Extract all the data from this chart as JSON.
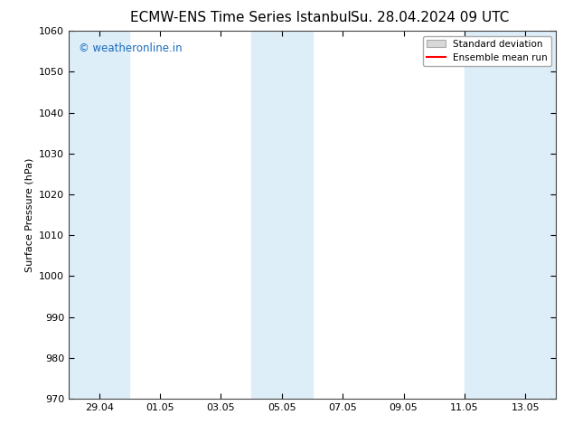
{
  "title_left": "ECMW-ENS Time Series Istanbul",
  "title_right": "Su. 28.04.2024 09 UTC",
  "ylabel": "Surface Pressure (hPa)",
  "ylim": [
    970,
    1060
  ],
  "yticks": [
    970,
    980,
    990,
    1000,
    1010,
    1020,
    1030,
    1040,
    1050,
    1060
  ],
  "xtick_labels": [
    "29.04",
    "01.05",
    "03.05",
    "05.05",
    "07.05",
    "09.05",
    "11.05",
    "13.05"
  ],
  "xtick_dates": [
    "2024-04-29",
    "2024-05-01",
    "2024-05-03",
    "2024-05-05",
    "2024-05-07",
    "2024-05-09",
    "2024-05-11",
    "2024-05-13"
  ],
  "xlim_start": "2024-04-28",
  "xlim_end": "2024-05-14",
  "shaded_bands": [
    {
      "start": "2024-04-28",
      "end": "2024-04-30",
      "color": "#ddeef8"
    },
    {
      "start": "2024-05-04",
      "end": "2024-05-05",
      "color": "#ddeef8"
    },
    {
      "start": "2024-05-05",
      "end": "2024-05-06",
      "color": "#ddeef8"
    },
    {
      "start": "2024-05-11",
      "end": "2024-05-12",
      "color": "#ddeef8"
    },
    {
      "start": "2024-05-12",
      "end": "2024-05-14",
      "color": "#ddeef8"
    }
  ],
  "watermark_text": "© weatheronline.in",
  "watermark_color": "#1a6abf",
  "bg_color": "#ffffff",
  "title_fontsize": 11,
  "axis_label_fontsize": 8,
  "tick_fontsize": 8,
  "legend_std_color": "#d8d8d8",
  "legend_std_edge": "#aaaaaa",
  "legend_mean_color": "#ff0000"
}
